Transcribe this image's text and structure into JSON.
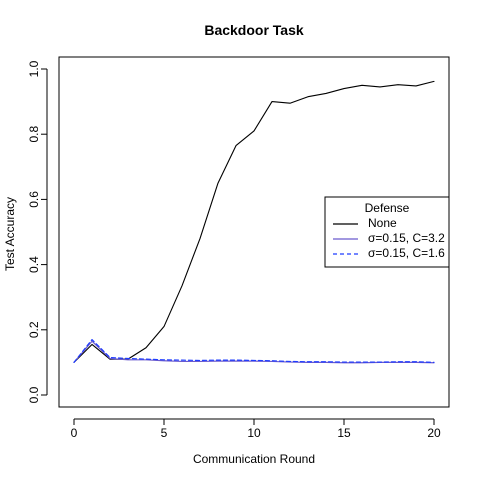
{
  "chart_data": {
    "type": "line",
    "title": "Backdoor Task",
    "xlabel": "Communication Round",
    "ylabel": "Test Accuracy",
    "xlim": [
      0,
      20
    ],
    "ylim": [
      0.0,
      1.0
    ],
    "xticks": [
      0,
      5,
      10,
      15,
      20
    ],
    "yticks": [
      0.0,
      0.2,
      0.4,
      0.6,
      0.8,
      1.0
    ],
    "x": [
      0,
      1,
      2,
      3,
      4,
      5,
      6,
      7,
      8,
      9,
      10,
      11,
      12,
      13,
      14,
      15,
      16,
      17,
      18,
      19,
      20
    ],
    "series": [
      {
        "name": "None",
        "color": "#000000",
        "dash": "solid",
        "values": [
          0.1,
          0.155,
          0.11,
          0.11,
          0.145,
          0.21,
          0.335,
          0.48,
          0.65,
          0.765,
          0.81,
          0.9,
          0.895,
          0.915,
          0.925,
          0.94,
          0.95,
          0.945,
          0.952,
          0.948,
          0.962
        ]
      },
      {
        "name": "σ=0.15, C=3.2",
        "color": "#6a5acd",
        "dash": "solid",
        "values": [
          0.1,
          0.165,
          0.112,
          0.108,
          0.108,
          0.105,
          0.103,
          0.103,
          0.104,
          0.104,
          0.104,
          0.103,
          0.101,
          0.1,
          0.1,
          0.099,
          0.099,
          0.1,
          0.1,
          0.1,
          0.099
        ]
      },
      {
        "name": "σ=0.15, C=1.6",
        "color": "#1e3cff",
        "dash": "dashed",
        "values": [
          0.1,
          0.17,
          0.115,
          0.112,
          0.11,
          0.108,
          0.107,
          0.106,
          0.107,
          0.107,
          0.106,
          0.105,
          0.103,
          0.102,
          0.102,
          0.101,
          0.101,
          0.101,
          0.102,
          0.102,
          0.1
        ]
      }
    ],
    "legend": {
      "title": "Defense",
      "position": "right-center"
    },
    "grid": false
  }
}
